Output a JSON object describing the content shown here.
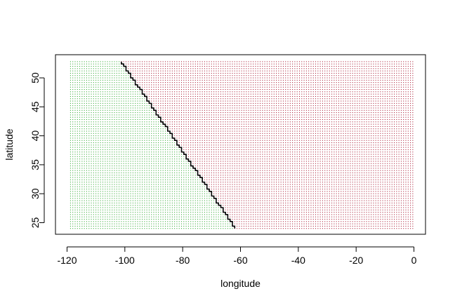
{
  "chart_data": {
    "type": "scatter",
    "title": "",
    "xlabel": "longitude",
    "ylabel": "latitude",
    "xlim": [
      -124,
      4
    ],
    "ylim": [
      23,
      54
    ],
    "grid": false,
    "legend": "none",
    "x_ticks": [
      -120,
      -100,
      -80,
      -60,
      -40,
      -20,
      0
    ],
    "x_tick_labels": [
      "-120",
      "-100",
      "-80",
      "-60",
      "-40",
      "-20",
      "0"
    ],
    "y_ticks": [
      25,
      30,
      35,
      40,
      45,
      50
    ],
    "y_tick_labels": [
      "25",
      "30",
      "35",
      "40",
      "45",
      "50"
    ],
    "grid_points": {
      "x_from": -118.8,
      "x_to": -0.4,
      "x_step": 0.8,
      "y_from": 24.0,
      "y_to": 52.8,
      "y_step": 0.4
    },
    "classes": [
      {
        "label": "left of boundary",
        "color": "#1a9e1a"
      },
      {
        "label": "right of boundary",
        "color": "#a0001c"
      }
    ],
    "boundary": {
      "type": "line",
      "color": "#000000",
      "points": [
        [
          -101.5,
          52.8
        ],
        [
          -62.0,
          24.0
        ]
      ]
    }
  }
}
